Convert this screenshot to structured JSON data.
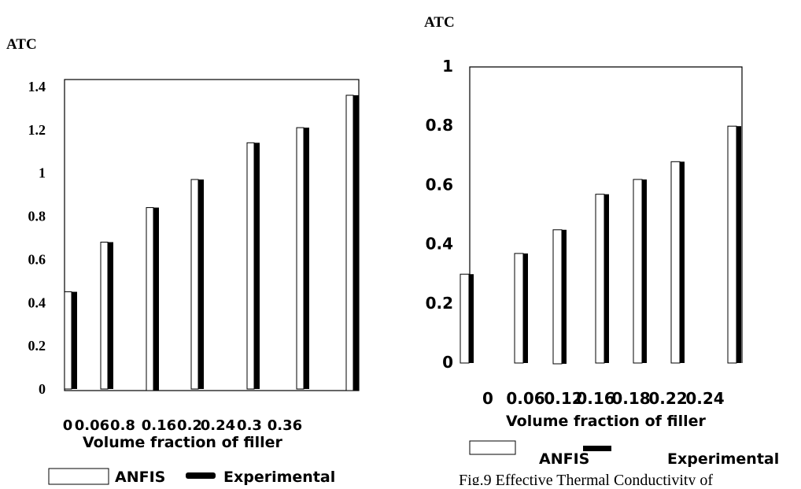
{
  "chart_data": [
    {
      "type": "bar",
      "ylabel": "ATC",
      "xlabel": "Volume fraction of filler",
      "categories": [
        "0",
        "0.06",
        "0.8",
        "0.16",
        "0.2",
        "0.24",
        "0.3",
        "0.36"
      ],
      "ylim": [
        0,
        1.4
      ],
      "yticks": [
        "0",
        "0.2",
        "0.4",
        "0.6",
        "0.8",
        "1",
        "1.2",
        "1.4"
      ],
      "series": [
        {
          "name": "ANFIS",
          "values": [
            0.45,
            0.68,
            0.84,
            0.97,
            null,
            1.14,
            1.21,
            1.36
          ]
        },
        {
          "name": "Experimental",
          "values": [
            0.45,
            0.68,
            0.84,
            0.97,
            null,
            1.14,
            1.21,
            1.36
          ]
        }
      ],
      "legend_position": "bottom",
      "colors": {
        "ANFIS": "#ffffff",
        "Experimental": "#000000"
      }
    },
    {
      "type": "bar",
      "ylabel": "ATC",
      "xlabel": "Volume fraction of filler",
      "categories": [
        "0",
        "0.06",
        "0.12",
        "0.16",
        "0.18",
        "0.22",
        "0.24"
      ],
      "ylim": [
        0,
        1
      ],
      "yticks": [
        "0",
        "0.2",
        "0.4",
        "0.6",
        "0.8",
        "1"
      ],
      "series": [
        {
          "name": "ANFIS",
          "values": [
            0.3,
            0.37,
            0.45,
            0.57,
            0.62,
            0.68,
            0.8
          ]
        },
        {
          "name": "Experimental",
          "values": [
            0.3,
            0.37,
            0.45,
            0.57,
            0.62,
            0.68,
            0.8
          ]
        }
      ],
      "legend_position": "bottom",
      "colors": {
        "ANFIS": "#ffffff",
        "Experimental": "#000000"
      }
    }
  ],
  "caption_partial": "Fig.9 Effective Thermal Conductivity of"
}
